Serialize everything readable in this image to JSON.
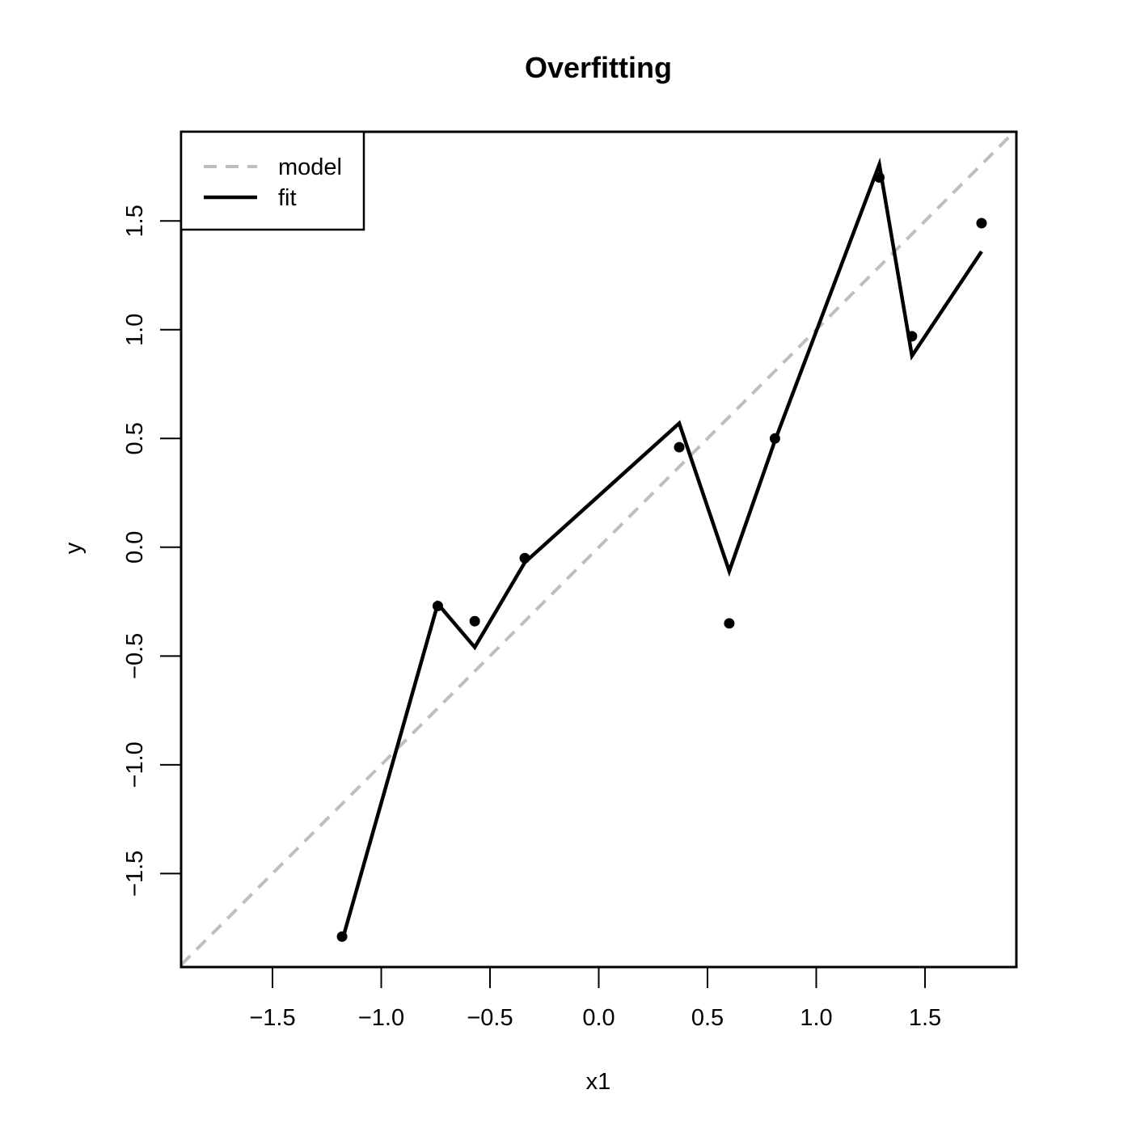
{
  "chart_data": {
    "type": "line",
    "title": "Overfitting",
    "xlabel": "x1",
    "ylabel": "y",
    "xlim": [
      -1.92,
      1.92
    ],
    "ylim": [
      -1.93,
      1.91
    ],
    "xticks": [
      -1.5,
      -1.0,
      -0.5,
      0.0,
      0.5,
      1.0,
      1.5
    ],
    "yticks": [
      -1.5,
      -1.0,
      -0.5,
      0.0,
      0.5,
      1.0,
      1.5
    ],
    "xtick_labels": [
      "−1.5",
      "−1.0",
      "−0.5",
      "0.0",
      "0.5",
      "1.0",
      "1.5"
    ],
    "ytick_labels": [
      "−1.5",
      "−1.0",
      "−0.5",
      "0.0",
      "0.5",
      "1.0",
      "1.5"
    ],
    "grid": false,
    "legend_position": "top-left",
    "points": {
      "x": [
        -1.18,
        -0.74,
        -0.57,
        -0.34,
        0.37,
        0.6,
        0.81,
        1.29,
        1.44,
        1.76
      ],
      "y": [
        -1.79,
        -0.27,
        -0.34,
        -0.05,
        0.46,
        -0.35,
        0.5,
        1.7,
        0.97,
        1.49
      ]
    },
    "series": [
      {
        "name": "model",
        "style": "dashed",
        "color": "#bebebe",
        "x": [
          -1.92,
          1.92
        ],
        "y": [
          -1.92,
          1.92
        ]
      },
      {
        "name": "fit",
        "style": "solid",
        "color": "#000000",
        "x": [
          -1.18,
          -0.74,
          -0.57,
          -0.34,
          0.37,
          0.6,
          0.81,
          1.29,
          1.44,
          1.76
        ],
        "y": [
          -1.81,
          -0.26,
          -0.46,
          -0.07,
          0.57,
          -0.11,
          0.49,
          1.76,
          0.88,
          1.36
        ]
      }
    ]
  }
}
